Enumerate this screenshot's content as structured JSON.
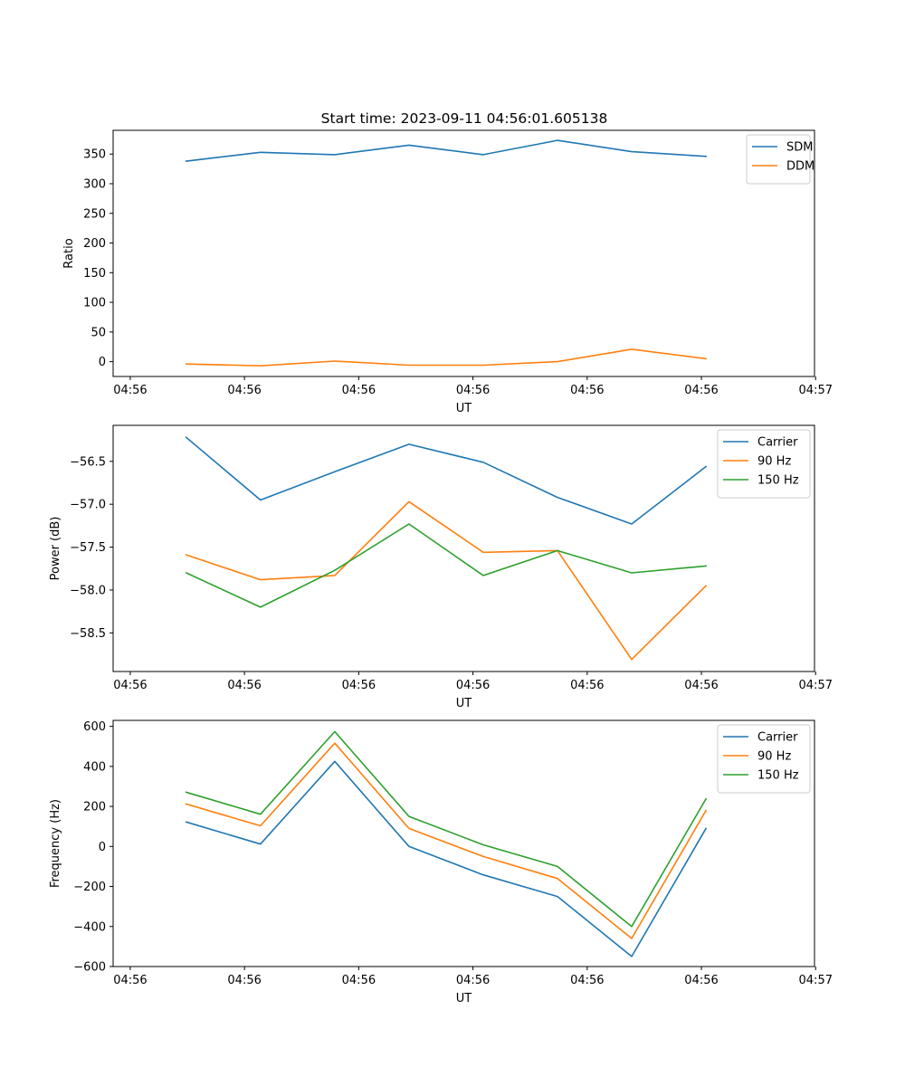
{
  "title": "Start time: 2023-09-11 04:56:01.605138",
  "x_tick_labels": [
    "04:56",
    "04:56",
    "04:56",
    "04:56",
    "04:56",
    "04:56",
    "04:57"
  ],
  "chart_data": [
    {
      "type": "line",
      "title": "Start time: 2023-09-11 04:56:01.605138",
      "xlabel": "UT",
      "ylabel": "Ratio",
      "x": [
        0.49,
        1.14,
        1.79,
        2.44,
        3.09,
        3.74,
        4.39,
        5.04
      ],
      "xlim": [
        -0.15,
        5.99
      ],
      "ylim": [
        -25,
        390
      ],
      "yticks": [
        0,
        50,
        100,
        150,
        200,
        250,
        300,
        350
      ],
      "ytick_labels": [
        "0",
        "50",
        "100",
        "150",
        "200",
        "250",
        "300",
        "350"
      ],
      "legend": "top-right",
      "series": [
        {
          "name": "SDM",
          "color": "#1f77b4",
          "values": [
            338,
            353,
            349,
            365,
            349,
            373,
            354,
            346
          ]
        },
        {
          "name": "DDM",
          "color": "#ff7f0e",
          "values": [
            -4,
            -7,
            1,
            -6,
            -6,
            0,
            21,
            5
          ]
        }
      ]
    },
    {
      "type": "line",
      "xlabel": "UT",
      "ylabel": "Power (dB)",
      "x": [
        0.49,
        1.14,
        1.79,
        2.44,
        3.09,
        3.74,
        4.39,
        5.04
      ],
      "xlim": [
        -0.15,
        5.99
      ],
      "ylim": [
        -58.95,
        -56.08
      ],
      "yticks": [
        -58.5,
        -58.0,
        -57.5,
        -57.0,
        -56.5
      ],
      "ytick_labels": [
        "−58.5",
        "−58.0",
        "−57.5",
        "−57.0",
        "−56.5"
      ],
      "legend": "top-right",
      "series": [
        {
          "name": "Carrier",
          "color": "#1f77b4",
          "values": [
            -56.22,
            -56.95,
            -56.62,
            -56.3,
            -56.51,
            -56.92,
            -57.23,
            -56.56
          ]
        },
        {
          "name": "90 Hz",
          "color": "#ff7f0e",
          "values": [
            -57.59,
            -57.88,
            -57.83,
            -56.97,
            -57.56,
            -57.54,
            -58.81,
            -57.95
          ]
        },
        {
          "name": "150 Hz",
          "color": "#2ca02c",
          "values": [
            -57.8,
            -58.2,
            -57.77,
            -57.23,
            -57.83,
            -57.54,
            -57.8,
            -57.72
          ]
        }
      ]
    },
    {
      "type": "line",
      "xlabel": "UT",
      "ylabel": "Frequency (Hz)",
      "x": [
        0.49,
        1.14,
        1.79,
        2.44,
        3.09,
        3.74,
        4.39,
        5.04
      ],
      "xlim": [
        -0.15,
        5.99
      ],
      "ylim": [
        -600,
        630
      ],
      "yticks": [
        -600,
        -400,
        -200,
        0,
        200,
        400,
        600
      ],
      "ytick_labels": [
        "−600",
        "−400",
        "−200",
        "0",
        "200",
        "400",
        "600"
      ],
      "legend": "top-right",
      "series": [
        {
          "name": "Carrier",
          "color": "#1f77b4",
          "values": [
            122,
            12,
            425,
            0,
            -142,
            -250,
            -550,
            90
          ]
        },
        {
          "name": "90 Hz",
          "color": "#ff7f0e",
          "values": [
            212,
            103,
            516,
            90,
            -50,
            -160,
            -460,
            180
          ]
        },
        {
          "name": "150 Hz",
          "color": "#2ca02c",
          "values": [
            271,
            161,
            574,
            150,
            8,
            -100,
            -400,
            238
          ]
        }
      ]
    }
  ]
}
